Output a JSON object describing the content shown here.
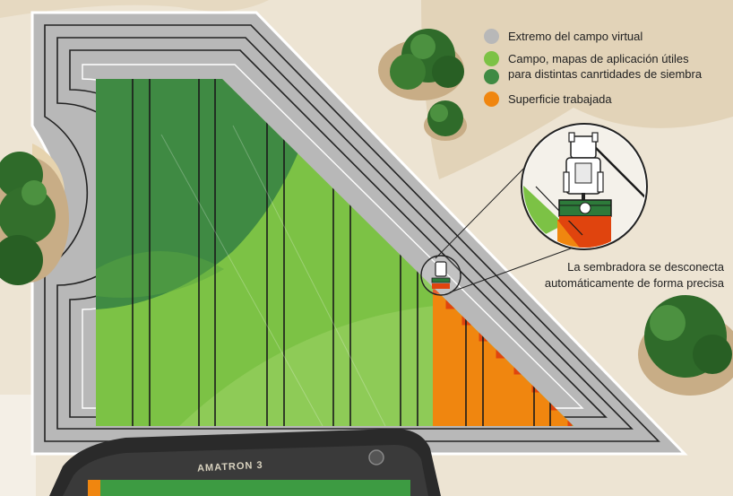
{
  "legend": {
    "items": [
      {
        "label_line1": "Extremo del campo virtual",
        "label_line2": "",
        "colors": [
          "#b8b8b8"
        ]
      },
      {
        "label_line1": "Campo, mapas de aplicación útiles",
        "label_line2": "para distintas canrtidades de siembra",
        "colors": [
          "#7cc245",
          "#3f8a43"
        ]
      },
      {
        "label_line1": "Superficie trabajada",
        "label_line2": "",
        "colors": [
          "#f0860f"
        ]
      }
    ]
  },
  "callout": {
    "line1": "La sembradora se desconecta",
    "line2": "automáticamente de forma precisa"
  },
  "device": {
    "brand": "AMATRON 3"
  },
  "colors": {
    "headland": "#b8b8b8",
    "field_light": "#7cc245",
    "field_dark": "#3f8a43",
    "worked": "#f0860f",
    "worked_edge": "#e0440e",
    "ground": "#ede4d3",
    "trees": "#2f6b2a"
  }
}
